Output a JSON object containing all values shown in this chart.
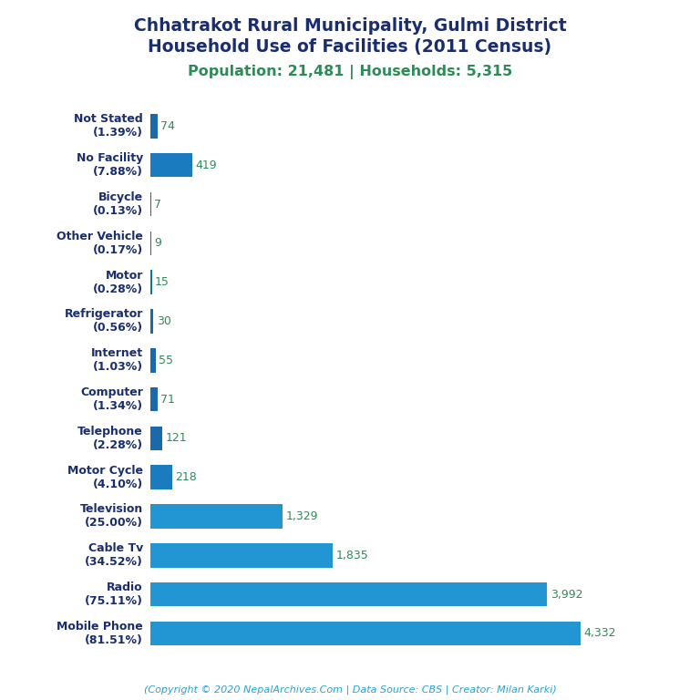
{
  "title_line1": "Chhatrakot Rural Municipality, Gulmi District",
  "title_line2": "Household Use of Facilities (2011 Census)",
  "subtitle": "Population: 21,481 | Households: 5,315",
  "footer": "(Copyright © 2020 NepalArchives.Com | Data Source: CBS | Creator: Milan Karki)",
  "categories": [
    "Not Stated\n(1.39%)",
    "No Facility\n(7.88%)",
    "Bicycle\n(0.13%)",
    "Other Vehicle\n(0.17%)",
    "Motor\n(0.28%)",
    "Refrigerator\n(0.56%)",
    "Internet\n(1.03%)",
    "Computer\n(1.34%)",
    "Telephone\n(2.28%)",
    "Motor Cycle\n(4.10%)",
    "Television\n(25.00%)",
    "Cable Tv\n(34.52%)",
    "Radio\n(75.11%)",
    "Mobile Phone\n(81.51%)"
  ],
  "values": [
    74,
    419,
    7,
    9,
    15,
    30,
    55,
    71,
    121,
    218,
    1329,
    1835,
    3992,
    4332
  ],
  "bar_color_small": "#1a6aab",
  "bar_color_medium": "#1a7bbf",
  "bar_color_large": "#2196d3",
  "title_color": "#1a2e6e",
  "subtitle_color": "#2e8b57",
  "footer_color": "#2b9fd4",
  "value_color": "#2e8b57",
  "label_color": "#1a2e6e",
  "background_color": "#ffffff",
  "figsize": [
    7.68,
    7.68
  ],
  "dpi": 100
}
